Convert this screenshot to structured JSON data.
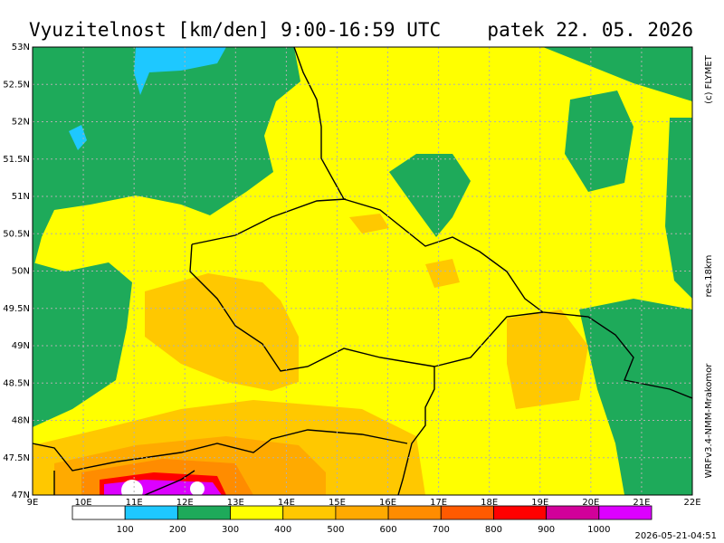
{
  "header": {
    "title": "Vyuzitelnost [km/den] 9:00-16:59 UTC",
    "date": "patek 22. 05. 2026"
  },
  "axes": {
    "lat_labels": [
      "53N",
      "52.5N",
      "52N",
      "51.5N",
      "51N",
      "50.5N",
      "50N",
      "49.5N",
      "49N",
      "48.5N",
      "48N",
      "47.5N",
      "47N"
    ],
    "lon_labels": [
      "9E",
      "10E",
      "11E",
      "12E",
      "13E",
      "14E",
      "15E",
      "16E",
      "17E",
      "18E",
      "19E",
      "20E",
      "21E",
      "22E"
    ]
  },
  "side_notes": {
    "copyright": "(c) FLYMET",
    "resolution": "res.18km",
    "model": "WRFv3.4-NMM-Mrakomor"
  },
  "legend": {
    "colors": [
      "#ffffff",
      "#1ec8ff",
      "#1eaa5a",
      "#ffff00",
      "#ffc800",
      "#ffaa00",
      "#ff8c00",
      "#ff5a00",
      "#ff0000",
      "#d2009a",
      "#dc00ff"
    ],
    "labels": [
      "100",
      "200",
      "300",
      "400",
      "500",
      "600",
      "700",
      "800",
      "900",
      "1000"
    ]
  },
  "footer": {
    "timestamp": "2026-05-21-04:51"
  }
}
